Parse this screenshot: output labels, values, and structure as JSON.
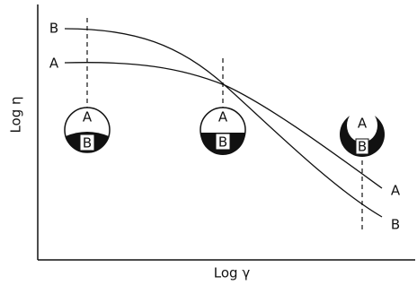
{
  "axes": {
    "x_label": "Log γ",
    "y_label": "Log η"
  },
  "curves": [
    {
      "label": "A"
    },
    {
      "label": "B"
    }
  ],
  "droplets": [
    {
      "top": "A",
      "bottom": "B"
    },
    {
      "top": "A",
      "bottom": "B"
    },
    {
      "top": "A",
      "bottom": "B"
    }
  ]
}
